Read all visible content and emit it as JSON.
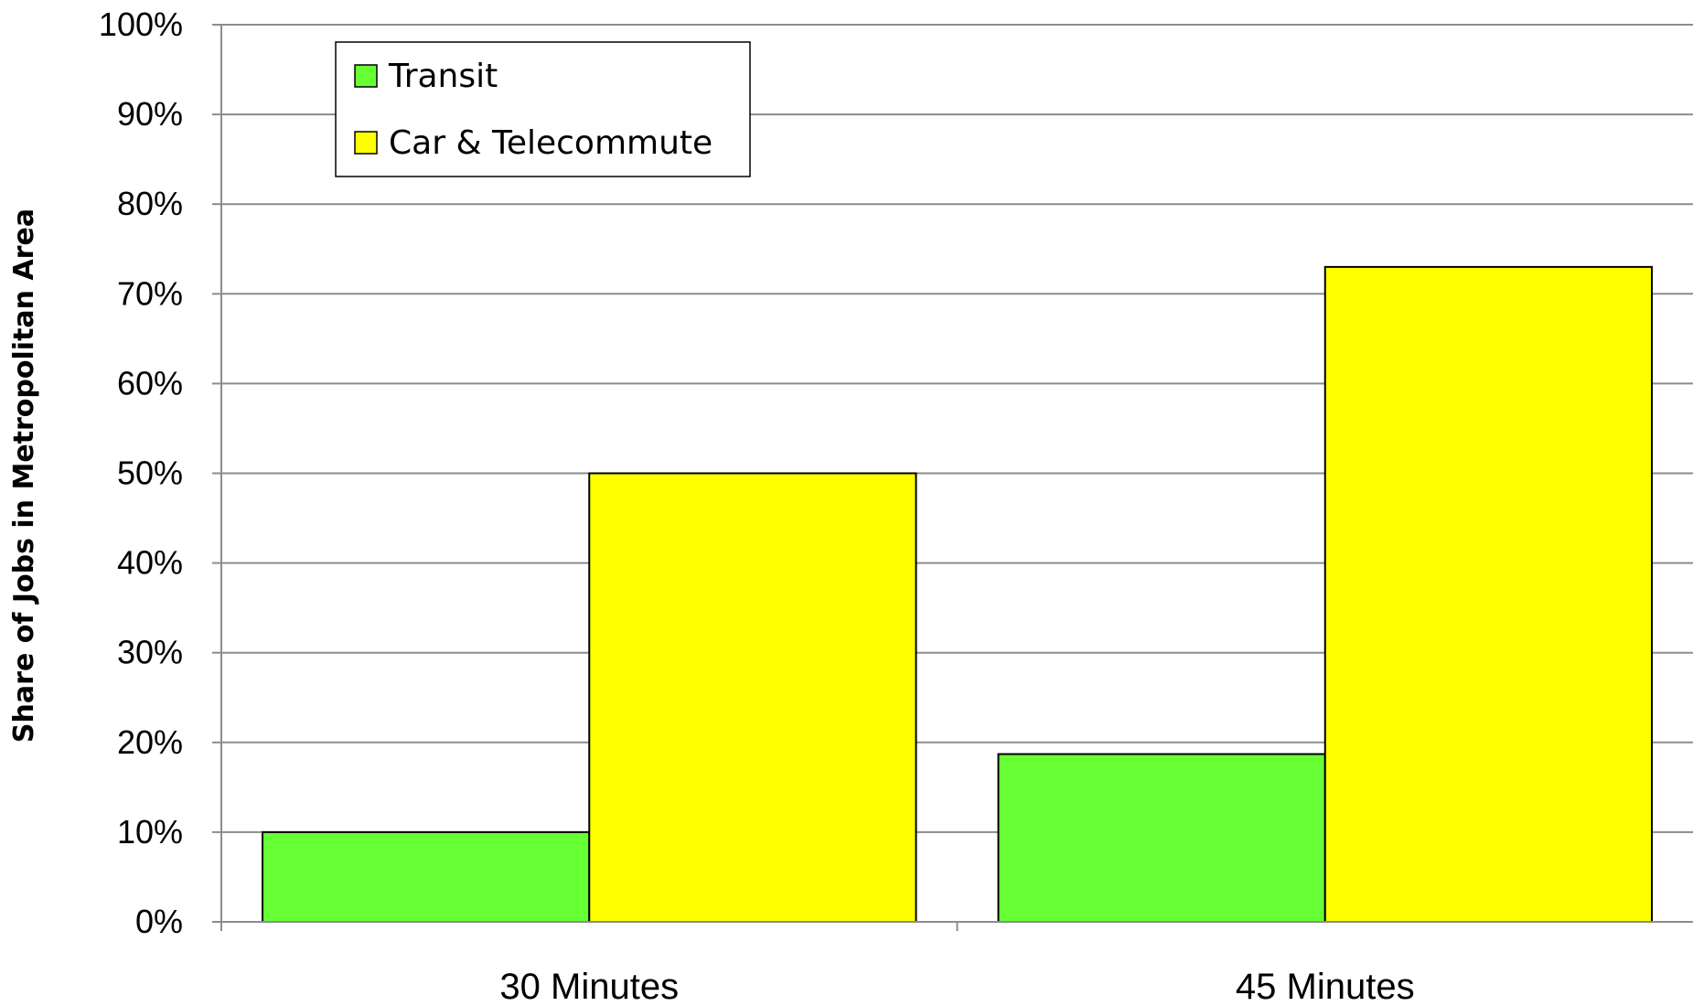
{
  "chart_data": {
    "type": "bar",
    "categories": [
      "30 Minutes",
      "45 Minutes"
    ],
    "series": [
      {
        "name": "Transit",
        "values": [
          10,
          18.7
        ],
        "color": "#66ff33"
      },
      {
        "name": "Car & Telecommute",
        "values": [
          50,
          73
        ],
        "color": "#ffff00"
      }
    ],
    "ylabel": "Share of Jobs in Metropolitan Area",
    "xlabel": "",
    "ylim": [
      0,
      100
    ],
    "yticks": [
      "0%",
      "10%",
      "20%",
      "30%",
      "40%",
      "50%",
      "60%",
      "70%",
      "80%",
      "90%",
      "100%"
    ],
    "grid": true,
    "legend_position": "top-left"
  }
}
